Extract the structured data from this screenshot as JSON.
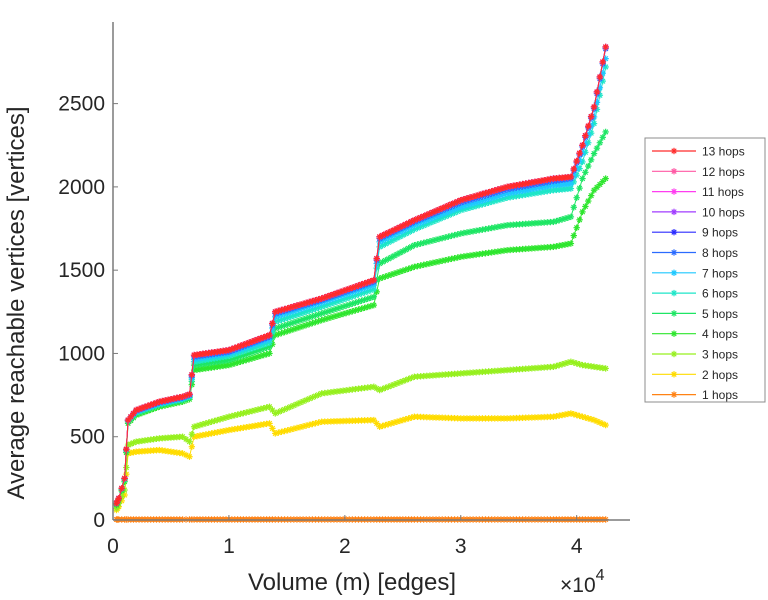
{
  "chart_data": {
    "type": "line",
    "title": "",
    "xlabel": "Volume (m) [edges]",
    "ylabel": "Average reachable vertices [vertices]",
    "x_exponent_label": "×10",
    "x_exponent_power": "4",
    "xlim": [
      0,
      44600
    ],
    "ylim": [
      0,
      2990
    ],
    "x_ticks": [
      0,
      10000,
      20000,
      30000,
      40000
    ],
    "x_tick_labels": [
      "0",
      "1",
      "2",
      "3",
      "4"
    ],
    "y_ticks": [
      0,
      500,
      1000,
      1500,
      2000,
      2500
    ],
    "y_tick_labels": [
      "0",
      "500",
      "1000",
      "1500",
      "2000",
      "2500"
    ],
    "grid": false,
    "legend_position": "right",
    "marker": "asterisk",
    "x": [
      300,
      500,
      1000,
      1300,
      2000,
      4000,
      6000,
      6600,
      7000,
      10000,
      13500,
      14000,
      18000,
      22500,
      23000,
      26000,
      30000,
      34000,
      38000,
      39500,
      40500,
      41500,
      42500
    ],
    "series": [
      {
        "name": "13 hops",
        "color": "#ff2b2b",
        "values": [
          100,
          130,
          250,
          600,
          660,
          710,
          740,
          755,
          990,
          1020,
          1110,
          1250,
          1330,
          1440,
          1700,
          1800,
          1920,
          2000,
          2050,
          2060,
          2250,
          2480,
          2840
        ]
      },
      {
        "name": "12 hops",
        "color": "#ff5aa5",
        "values": [
          100,
          130,
          250,
          600,
          660,
          710,
          740,
          755,
          990,
          1020,
          1110,
          1250,
          1330,
          1440,
          1700,
          1800,
          1920,
          2000,
          2050,
          2060,
          2250,
          2480,
          2840
        ]
      },
      {
        "name": "11 hops",
        "color": "#ff3df0",
        "values": [
          100,
          130,
          250,
          600,
          660,
          710,
          740,
          755,
          990,
          1020,
          1110,
          1250,
          1330,
          1440,
          1700,
          1800,
          1920,
          2000,
          2050,
          2060,
          2250,
          2480,
          2840
        ]
      },
      {
        "name": "10 hops",
        "color": "#a03cff",
        "values": [
          100,
          130,
          250,
          600,
          660,
          710,
          740,
          755,
          990,
          1020,
          1110,
          1250,
          1330,
          1440,
          1700,
          1800,
          1920,
          2000,
          2050,
          2060,
          2250,
          2480,
          2840
        ]
      },
      {
        "name": "9 hops",
        "color": "#2b2bff",
        "values": [
          100,
          130,
          250,
          600,
          660,
          710,
          740,
          755,
          990,
          1020,
          1110,
          1250,
          1330,
          1440,
          1700,
          1800,
          1920,
          2000,
          2050,
          2060,
          2250,
          2480,
          2840
        ]
      },
      {
        "name": "8 hops",
        "color": "#2b6bff",
        "values": [
          100,
          130,
          250,
          600,
          655,
          705,
          735,
          750,
          980,
          1010,
          1100,
          1240,
          1320,
          1430,
          1690,
          1790,
          1905,
          1985,
          2035,
          2050,
          2240,
          2470,
          2830
        ]
      },
      {
        "name": "7 hops",
        "color": "#1ec8ff",
        "values": [
          100,
          130,
          250,
          600,
          650,
          700,
          730,
          745,
          965,
          1000,
          1085,
          1220,
          1305,
          1410,
          1670,
          1770,
          1880,
          1960,
          2010,
          2020,
          2200,
          2420,
          2770
        ]
      },
      {
        "name": "6 hops",
        "color": "#1ee6c8",
        "values": [
          100,
          130,
          245,
          595,
          645,
          695,
          725,
          740,
          950,
          985,
          1065,
          1190,
          1280,
          1385,
          1640,
          1745,
          1860,
          1935,
          1980,
          1990,
          2150,
          2380,
          2720
        ]
      },
      {
        "name": "5 hops",
        "color": "#1ee664",
        "values": [
          95,
          125,
          240,
          590,
          640,
          690,
          720,
          735,
          930,
          960,
          1040,
          1150,
          1240,
          1340,
          1540,
          1650,
          1720,
          1770,
          1790,
          1820,
          2050,
          2200,
          2330
        ]
      },
      {
        "name": "4 hops",
        "color": "#2ee62e",
        "values": [
          90,
          120,
          230,
          580,
          630,
          680,
          710,
          725,
          900,
          930,
          1000,
          1110,
          1200,
          1290,
          1450,
          1520,
          1580,
          1620,
          1640,
          1660,
          1850,
          1980,
          2050
        ]
      },
      {
        "name": "3 hops",
        "color": "#96f01e",
        "values": [
          70,
          100,
          180,
          450,
          470,
          490,
          500,
          470,
          560,
          620,
          680,
          640,
          760,
          800,
          780,
          860,
          880,
          900,
          920,
          950,
          930,
          920,
          910
        ]
      },
      {
        "name": "2 hops",
        "color": "#ffdc00",
        "values": [
          60,
          80,
          150,
          400,
          410,
          420,
          400,
          380,
          500,
          540,
          580,
          520,
          590,
          600,
          560,
          620,
          610,
          610,
          620,
          640,
          620,
          600,
          570
        ]
      },
      {
        "name": "1 hops",
        "color": "#ff8214",
        "values": [
          3,
          3,
          3,
          3,
          3,
          3,
          3,
          3,
          3,
          3,
          3,
          3,
          3,
          3,
          3,
          3,
          3,
          3,
          3,
          3,
          3,
          3,
          3
        ]
      }
    ]
  }
}
